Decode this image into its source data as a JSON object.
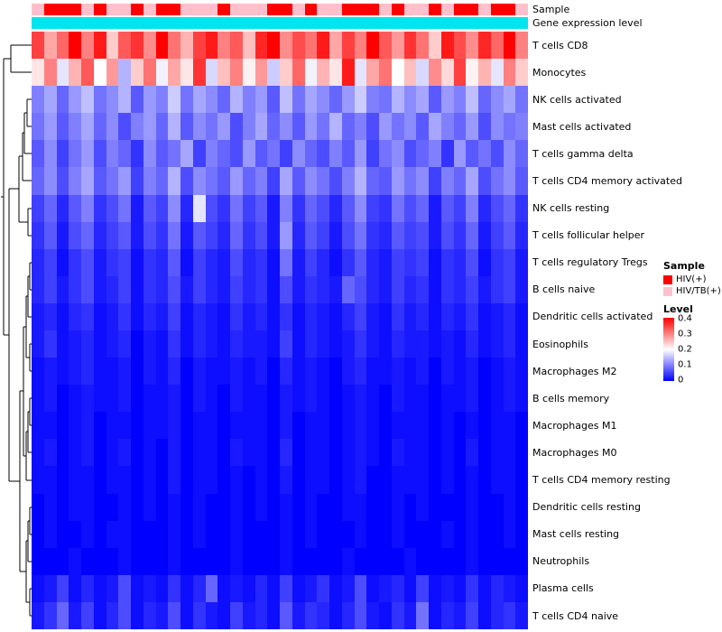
{
  "chart_data": {
    "type": "heatmap",
    "samples_count": 40,
    "scale": {
      "min": 0,
      "max": 0.4,
      "low_color": "#0000FF",
      "mid_color": "#FFFFFF",
      "high_color": "#FF0000"
    },
    "annotations": [
      {
        "label": "Sample",
        "type": "categorical",
        "values": [
          "HIV/TB(+)",
          "HIV(+)",
          "HIV(+)",
          "HIV(+)",
          "HIV/TB(+)",
          "HIV(+)",
          "HIV/TB(+)",
          "HIV/TB(+)",
          "HIV(+)",
          "HIV/TB(+)",
          "HIV(+)",
          "HIV(+)",
          "HIV/TB(+)",
          "HIV/TB(+)",
          "HIV/TB(+)",
          "HIV(+)",
          "HIV/TB(+)",
          "HIV/TB(+)",
          "HIV/TB(+)",
          "HIV(+)",
          "HIV(+)",
          "HIV/TB(+)",
          "HIV(+)",
          "HIV/TB(+)",
          "HIV/TB(+)",
          "HIV(+)",
          "HIV(+)",
          "HIV(+)",
          "HIV/TB(+)",
          "HIV(+)",
          "HIV/TB(+)",
          "HIV/TB(+)",
          "HIV(+)",
          "HIV/TB(+)",
          "HIV(+)",
          "HIV(+)",
          "HIV/TB(+)",
          "HIV(+)",
          "HIV(+)",
          "HIV/TB(+)"
        ]
      },
      {
        "label": "Gene expression level",
        "type": "uniform",
        "color": "#00E5EE"
      }
    ],
    "legend": {
      "sample_title": "Sample",
      "entries": [
        {
          "label": "HIV(+)",
          "color": "#FF0000"
        },
        {
          "label": "HIV/TB(+)",
          "color": "#FFC0CB"
        }
      ],
      "level_title": "Level",
      "ticks": [
        "0.4",
        "0.3",
        "0.2",
        "0.1",
        "0"
      ]
    },
    "rows": [
      {
        "name": "T cells CD8",
        "values": [
          0.35,
          0.27,
          0.32,
          0.4,
          0.3,
          0.38,
          0.24,
          0.33,
          0.36,
          0.29,
          0.4,
          0.31,
          0.26,
          0.35,
          0.38,
          0.3,
          0.33,
          0.25,
          0.37,
          0.4,
          0.29,
          0.34,
          0.31,
          0.38,
          0.27,
          0.35,
          0.3,
          0.4,
          0.33,
          0.28,
          0.36,
          0.31,
          0.24,
          0.38,
          0.34,
          0.29,
          0.37,
          0.32,
          0.4,
          0.3
        ]
      },
      {
        "name": "Monocytes",
        "values": [
          0.22,
          0.3,
          0.18,
          0.26,
          0.33,
          0.2,
          0.28,
          0.14,
          0.24,
          0.31,
          0.19,
          0.27,
          0.22,
          0.36,
          0.17,
          0.25,
          0.3,
          0.21,
          0.28,
          0.16,
          0.24,
          0.32,
          0.19,
          0.26,
          0.22,
          0.38,
          0.18,
          0.27,
          0.31,
          0.2,
          0.25,
          0.17,
          0.29,
          0.23,
          0.35,
          0.21,
          0.26,
          0.18,
          0.3,
          0.24
        ]
      },
      {
        "name": "NK cells activated",
        "values": [
          0.1,
          0.13,
          0.08,
          0.12,
          0.15,
          0.09,
          0.11,
          0.14,
          0.07,
          0.12,
          0.1,
          0.16,
          0.09,
          0.13,
          0.11,
          0.08,
          0.14,
          0.1,
          0.12,
          0.07,
          0.15,
          0.09,
          0.13,
          0.11,
          0.08,
          0.12,
          0.16,
          0.1,
          0.09,
          0.14,
          0.11,
          0.13,
          0.07,
          0.12,
          0.1,
          0.15,
          0.08,
          0.11,
          0.13,
          0.09
        ]
      },
      {
        "name": "Mast cells activated",
        "values": [
          0.09,
          0.12,
          0.07,
          0.1,
          0.13,
          0.08,
          0.11,
          0.06,
          0.1,
          0.12,
          0.08,
          0.14,
          0.07,
          0.11,
          0.09,
          0.12,
          0.06,
          0.1,
          0.13,
          0.08,
          0.11,
          0.07,
          0.12,
          0.09,
          0.14,
          0.08,
          0.1,
          0.06,
          0.12,
          0.09,
          0.11,
          0.07,
          0.13,
          0.1,
          0.08,
          0.12,
          0.06,
          0.11,
          0.09,
          0.1
        ]
      },
      {
        "name": "T cells gamma delta",
        "values": [
          0.07,
          0.11,
          0.05,
          0.09,
          0.12,
          0.06,
          0.1,
          0.08,
          0.04,
          0.11,
          0.07,
          0.09,
          0.13,
          0.05,
          0.1,
          0.08,
          0.06,
          0.12,
          0.07,
          0.09,
          0.05,
          0.11,
          0.08,
          0.06,
          0.1,
          0.07,
          0.12,
          0.05,
          0.09,
          0.11,
          0.06,
          0.08,
          0.1,
          0.04,
          0.12,
          0.07,
          0.09,
          0.06,
          0.11,
          0.08
        ]
      },
      {
        "name": "T cells CD4 memory activated",
        "values": [
          0.08,
          0.11,
          0.06,
          0.1,
          0.13,
          0.07,
          0.09,
          0.12,
          0.05,
          0.1,
          0.08,
          0.14,
          0.06,
          0.11,
          0.09,
          0.07,
          0.12,
          0.08,
          0.1,
          0.05,
          0.13,
          0.07,
          0.11,
          0.09,
          0.06,
          0.1,
          0.14,
          0.08,
          0.07,
          0.12,
          0.09,
          0.11,
          0.05,
          0.1,
          0.08,
          0.13,
          0.06,
          0.09,
          0.11,
          0.07
        ]
      },
      {
        "name": "NK cells resting",
        "values": [
          0.05,
          0.08,
          0.03,
          0.07,
          0.1,
          0.04,
          0.06,
          0.09,
          0.02,
          0.07,
          0.05,
          0.11,
          0.03,
          0.18,
          0.06,
          0.04,
          0.09,
          0.05,
          0.07,
          0.02,
          0.1,
          0.04,
          0.08,
          0.06,
          0.03,
          0.07,
          0.11,
          0.05,
          0.04,
          0.09,
          0.06,
          0.08,
          0.02,
          0.07,
          0.05,
          0.1,
          0.03,
          0.06,
          0.08,
          0.04
        ]
      },
      {
        "name": "T cells follicular helper",
        "values": [
          0.04,
          0.07,
          0.02,
          0.06,
          0.08,
          0.03,
          0.05,
          0.07,
          0.02,
          0.06,
          0.04,
          0.09,
          0.02,
          0.07,
          0.05,
          0.03,
          0.08,
          0.04,
          0.06,
          0.02,
          0.12,
          0.03,
          0.07,
          0.05,
          0.02,
          0.06,
          0.09,
          0.04,
          0.03,
          0.07,
          0.05,
          0.06,
          0.02,
          0.06,
          0.04,
          0.08,
          0.02,
          0.05,
          0.07,
          0.03
        ]
      },
      {
        "name": "T cells regulatory Tregs",
        "values": [
          0.03,
          0.05,
          0.01,
          0.04,
          0.06,
          0.02,
          0.04,
          0.05,
          0.01,
          0.04,
          0.03,
          0.07,
          0.01,
          0.05,
          0.03,
          0.02,
          0.06,
          0.03,
          0.04,
          0.01,
          0.09,
          0.02,
          0.05,
          0.03,
          0.01,
          0.04,
          0.07,
          0.03,
          0.02,
          0.05,
          0.04,
          0.05,
          0.01,
          0.04,
          0.03,
          0.06,
          0.01,
          0.04,
          0.05,
          0.02
        ]
      },
      {
        "name": "B cells naive",
        "values": [
          0.03,
          0.05,
          0.02,
          0.04,
          0.06,
          0.02,
          0.03,
          0.05,
          0.01,
          0.04,
          0.03,
          0.06,
          0.02,
          0.05,
          0.03,
          0.02,
          0.05,
          0.03,
          0.04,
          0.01,
          0.06,
          0.02,
          0.04,
          0.03,
          0.02,
          0.08,
          0.06,
          0.03,
          0.02,
          0.05,
          0.03,
          0.04,
          0.01,
          0.04,
          0.03,
          0.05,
          0.02,
          0.04,
          0.05,
          0.02
        ]
      },
      {
        "name": "Dendritic cells activated",
        "values": [
          0.02,
          0.03,
          0.01,
          0.03,
          0.04,
          0.01,
          0.02,
          0.04,
          0.01,
          0.03,
          0.02,
          0.05,
          0.01,
          0.03,
          0.02,
          0.01,
          0.04,
          0.02,
          0.03,
          0.01,
          0.04,
          0.01,
          0.03,
          0.02,
          0.01,
          0.03,
          0.05,
          0.02,
          0.01,
          0.04,
          0.02,
          0.03,
          0.01,
          0.03,
          0.02,
          0.04,
          0.01,
          0.02,
          0.03,
          0.01
        ]
      },
      {
        "name": "Eosinophils",
        "values": [
          0.02,
          0.04,
          0.01,
          0.02,
          0.03,
          0.01,
          0.02,
          0.03,
          0.0,
          0.02,
          0.01,
          0.04,
          0.01,
          0.03,
          0.02,
          0.01,
          0.03,
          0.02,
          0.02,
          0.01,
          0.05,
          0.01,
          0.03,
          0.02,
          0.01,
          0.02,
          0.04,
          0.02,
          0.01,
          0.03,
          0.02,
          0.02,
          0.01,
          0.02,
          0.01,
          0.03,
          0.01,
          0.02,
          0.03,
          0.01
        ]
      },
      {
        "name": "Macrophages M2",
        "values": [
          0.01,
          0.02,
          0.01,
          0.02,
          0.03,
          0.01,
          0.01,
          0.02,
          0.0,
          0.02,
          0.01,
          0.03,
          0.0,
          0.02,
          0.01,
          0.01,
          0.02,
          0.01,
          0.02,
          0.0,
          0.03,
          0.01,
          0.02,
          0.01,
          0.0,
          0.02,
          0.03,
          0.01,
          0.01,
          0.02,
          0.01,
          0.02,
          0.0,
          0.02,
          0.01,
          0.02,
          0.0,
          0.01,
          0.02,
          0.01
        ]
      },
      {
        "name": "B cells memory",
        "values": [
          0.01,
          0.02,
          0.0,
          0.01,
          0.02,
          0.01,
          0.01,
          0.02,
          0.0,
          0.01,
          0.01,
          0.02,
          0.0,
          0.02,
          0.01,
          0.0,
          0.02,
          0.01,
          0.01,
          0.0,
          0.02,
          0.01,
          0.02,
          0.01,
          0.0,
          0.01,
          0.02,
          0.01,
          0.0,
          0.02,
          0.01,
          0.01,
          0.0,
          0.01,
          0.01,
          0.02,
          0.0,
          0.01,
          0.02,
          0.01
        ]
      },
      {
        "name": "Macrophages M1",
        "values": [
          0.01,
          0.01,
          0.0,
          0.01,
          0.02,
          0.0,
          0.01,
          0.01,
          0.0,
          0.01,
          0.01,
          0.02,
          0.0,
          0.01,
          0.01,
          0.0,
          0.01,
          0.01,
          0.01,
          0.0,
          0.02,
          0.0,
          0.01,
          0.01,
          0.0,
          0.01,
          0.02,
          0.01,
          0.0,
          0.01,
          0.01,
          0.01,
          0.0,
          0.01,
          0.0,
          0.01,
          0.0,
          0.01,
          0.01,
          0.0
        ]
      },
      {
        "name": "Macrophages M0",
        "values": [
          0.01,
          0.02,
          0.0,
          0.01,
          0.02,
          0.0,
          0.01,
          0.02,
          0.0,
          0.01,
          0.0,
          0.02,
          0.0,
          0.01,
          0.01,
          0.0,
          0.02,
          0.01,
          0.01,
          0.0,
          0.03,
          0.0,
          0.01,
          0.01,
          0.0,
          0.01,
          0.02,
          0.01,
          0.0,
          0.02,
          0.01,
          0.01,
          0.0,
          0.01,
          0.0,
          0.02,
          0.0,
          0.01,
          0.01,
          0.0
        ]
      },
      {
        "name": "T cells CD4 memory resting",
        "values": [
          0.01,
          0.01,
          0.0,
          0.01,
          0.01,
          0.0,
          0.01,
          0.01,
          0.0,
          0.01,
          0.0,
          0.02,
          0.0,
          0.01,
          0.01,
          0.0,
          0.01,
          0.0,
          0.01,
          0.0,
          0.02,
          0.0,
          0.01,
          0.01,
          0.0,
          0.01,
          0.02,
          0.0,
          0.0,
          0.01,
          0.01,
          0.01,
          0.0,
          0.01,
          0.0,
          0.01,
          0.0,
          0.01,
          0.01,
          0.0
        ]
      },
      {
        "name": "Dendritic cells resting",
        "values": [
          0.0,
          0.01,
          0.0,
          0.01,
          0.01,
          0.0,
          0.0,
          0.01,
          0.0,
          0.01,
          0.0,
          0.01,
          0.0,
          0.01,
          0.0,
          0.0,
          0.01,
          0.0,
          0.01,
          0.0,
          0.01,
          0.0,
          0.01,
          0.0,
          0.0,
          0.01,
          0.01,
          0.0,
          0.0,
          0.01,
          0.0,
          0.01,
          0.0,
          0.0,
          0.0,
          0.01,
          0.0,
          0.0,
          0.01,
          0.0
        ]
      },
      {
        "name": "Mast cells resting",
        "values": [
          0.0,
          0.01,
          0.0,
          0.0,
          0.01,
          0.0,
          0.01,
          0.01,
          0.0,
          0.0,
          0.0,
          0.01,
          0.0,
          0.01,
          0.0,
          0.0,
          0.01,
          0.0,
          0.0,
          0.0,
          0.01,
          0.0,
          0.01,
          0.0,
          0.0,
          0.0,
          0.01,
          0.0,
          0.0,
          0.01,
          0.0,
          0.0,
          0.0,
          0.01,
          0.0,
          0.01,
          0.0,
          0.0,
          0.01,
          0.0
        ]
      },
      {
        "name": "Neutrophils",
        "values": [
          0.0,
          0.0,
          0.0,
          0.01,
          0.0,
          0.0,
          0.0,
          0.01,
          0.0,
          0.0,
          0.0,
          0.01,
          0.0,
          0.0,
          0.0,
          0.0,
          0.01,
          0.0,
          0.0,
          0.0,
          0.01,
          0.0,
          0.0,
          0.0,
          0.0,
          0.01,
          0.0,
          0.0,
          0.0,
          0.0,
          0.01,
          0.0,
          0.0,
          0.0,
          0.0,
          0.01,
          0.0,
          0.0,
          0.0,
          0.0
        ]
      },
      {
        "name": "Plasma cells",
        "values": [
          0.01,
          0.02,
          0.05,
          0.01,
          0.03,
          0.01,
          0.02,
          0.06,
          0.01,
          0.02,
          0.01,
          0.04,
          0.01,
          0.03,
          0.08,
          0.01,
          0.02,
          0.01,
          0.03,
          0.01,
          0.05,
          0.01,
          0.02,
          0.04,
          0.01,
          0.02,
          0.06,
          0.01,
          0.02,
          0.03,
          0.01,
          0.05,
          0.01,
          0.02,
          0.01,
          0.04,
          0.01,
          0.03,
          0.02,
          0.01
        ]
      },
      {
        "name": "T cells CD4 naive",
        "values": [
          0.02,
          0.04,
          0.08,
          0.02,
          0.05,
          0.01,
          0.03,
          0.06,
          0.01,
          0.03,
          0.02,
          0.06,
          0.01,
          0.04,
          0.02,
          0.01,
          0.05,
          0.02,
          0.03,
          0.01,
          0.07,
          0.02,
          0.04,
          0.03,
          0.01,
          0.03,
          0.06,
          0.02,
          0.01,
          0.04,
          0.02,
          0.09,
          0.01,
          0.03,
          0.02,
          0.05,
          0.01,
          0.03,
          0.04,
          0.02
        ]
      }
    ]
  }
}
